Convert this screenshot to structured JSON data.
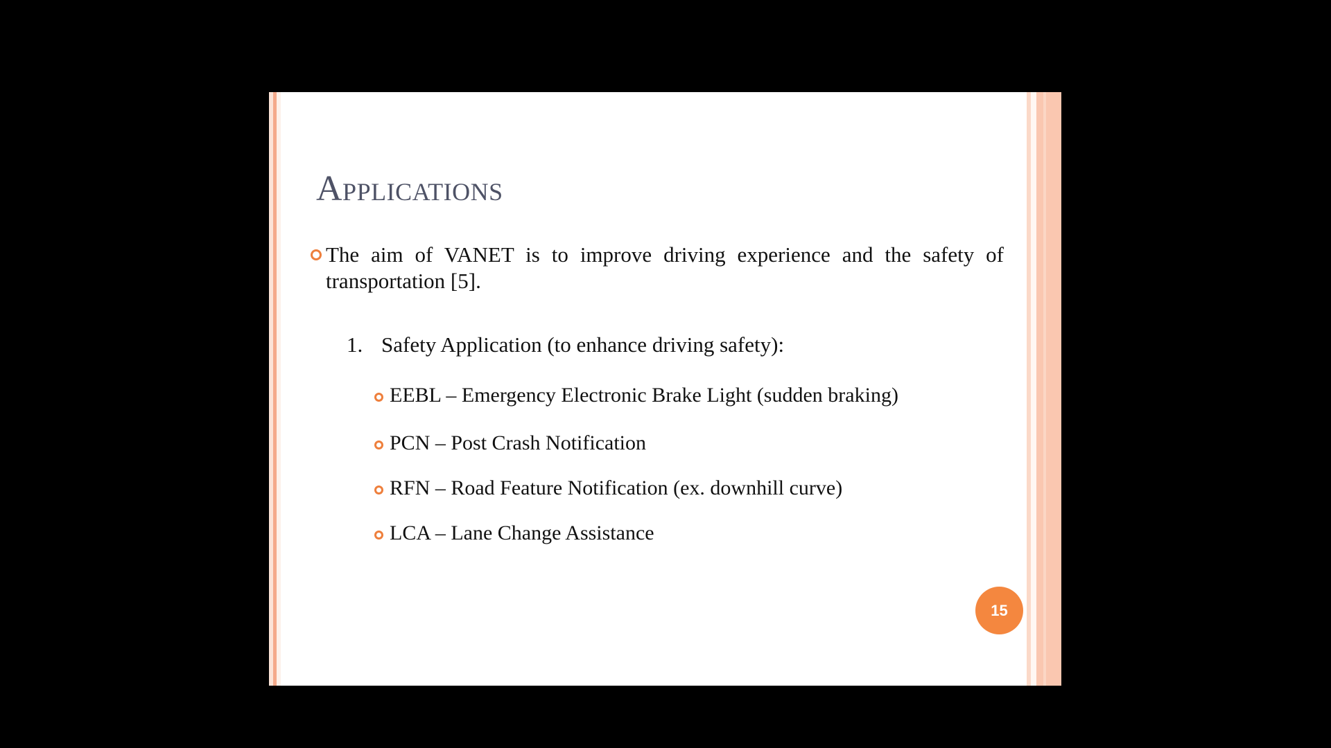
{
  "slide": {
    "title": "Applications",
    "main_bullet": "The aim of VANET is to improve driving experience and the safety of transportation [5].",
    "numbered_item": {
      "number": "1.",
      "label": "Safety Application (to enhance driving safety):"
    },
    "sub_items": [
      "EEBL – Emergency Electronic Brake Light (sudden braking)",
      "PCN – Post Crash Notification",
      "RFN – Road Feature Notification (ex. downhill curve)",
      "LCA – Lane Change Assistance"
    ],
    "page_number": "15"
  },
  "colors": {
    "accent": "#ee7f3c",
    "badge": "#f4873f",
    "title": "#4e5266",
    "border_stripe": "#fac7b0"
  },
  "icons": {
    "bullet": "hollow-circle-bullet-icon"
  }
}
